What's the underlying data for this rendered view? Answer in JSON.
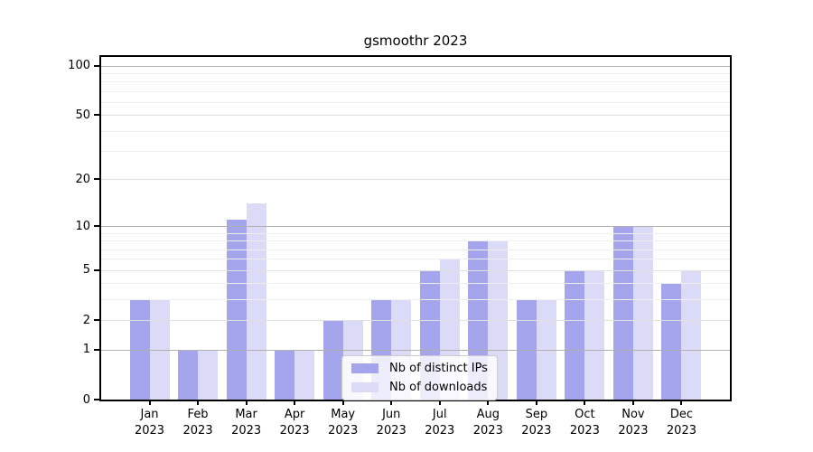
{
  "chart_data": {
    "type": "bar",
    "title": "gsmoothr 2023",
    "categories": [
      "Jan 2023",
      "Feb 2023",
      "Mar 2023",
      "Apr 2023",
      "May 2023",
      "Jun 2023",
      "Jul 2023",
      "Aug 2023",
      "Sep 2023",
      "Oct 2023",
      "Nov 2023",
      "Dec 2023"
    ],
    "series": [
      {
        "name": "Nb of distinct IPs",
        "color": "#a5a5ee",
        "values": [
          3,
          1,
          11,
          1,
          2,
          3,
          5,
          8,
          3,
          5,
          10,
          4
        ]
      },
      {
        "name": "Nb of downloads",
        "color": "#dbdbf7",
        "values": [
          3,
          1,
          14,
          1,
          2,
          3,
          6,
          8,
          3,
          5,
          10,
          5
        ]
      }
    ],
    "yscale": "log1p",
    "ylim": [
      0,
      113
    ],
    "yticks": [
      0,
      1,
      2,
      5,
      10,
      20,
      50,
      100
    ],
    "grid": {
      "on": true,
      "decade_lines": [
        1,
        10,
        100
      ],
      "major_lines": [
        2,
        5,
        20,
        50
      ],
      "minor_lines": [
        3,
        4,
        6,
        7,
        8,
        9,
        30,
        40,
        60,
        70,
        80,
        90
      ],
      "decade_color": "#b0b0b0",
      "major_color": "#e0e0e0",
      "minor_color": "#efefef"
    },
    "legend": {
      "position": "lower-center-inside",
      "entries": [
        "Nb of distinct IPs",
        "Nb of downloads"
      ]
    },
    "xlabel": "",
    "ylabel": ""
  }
}
